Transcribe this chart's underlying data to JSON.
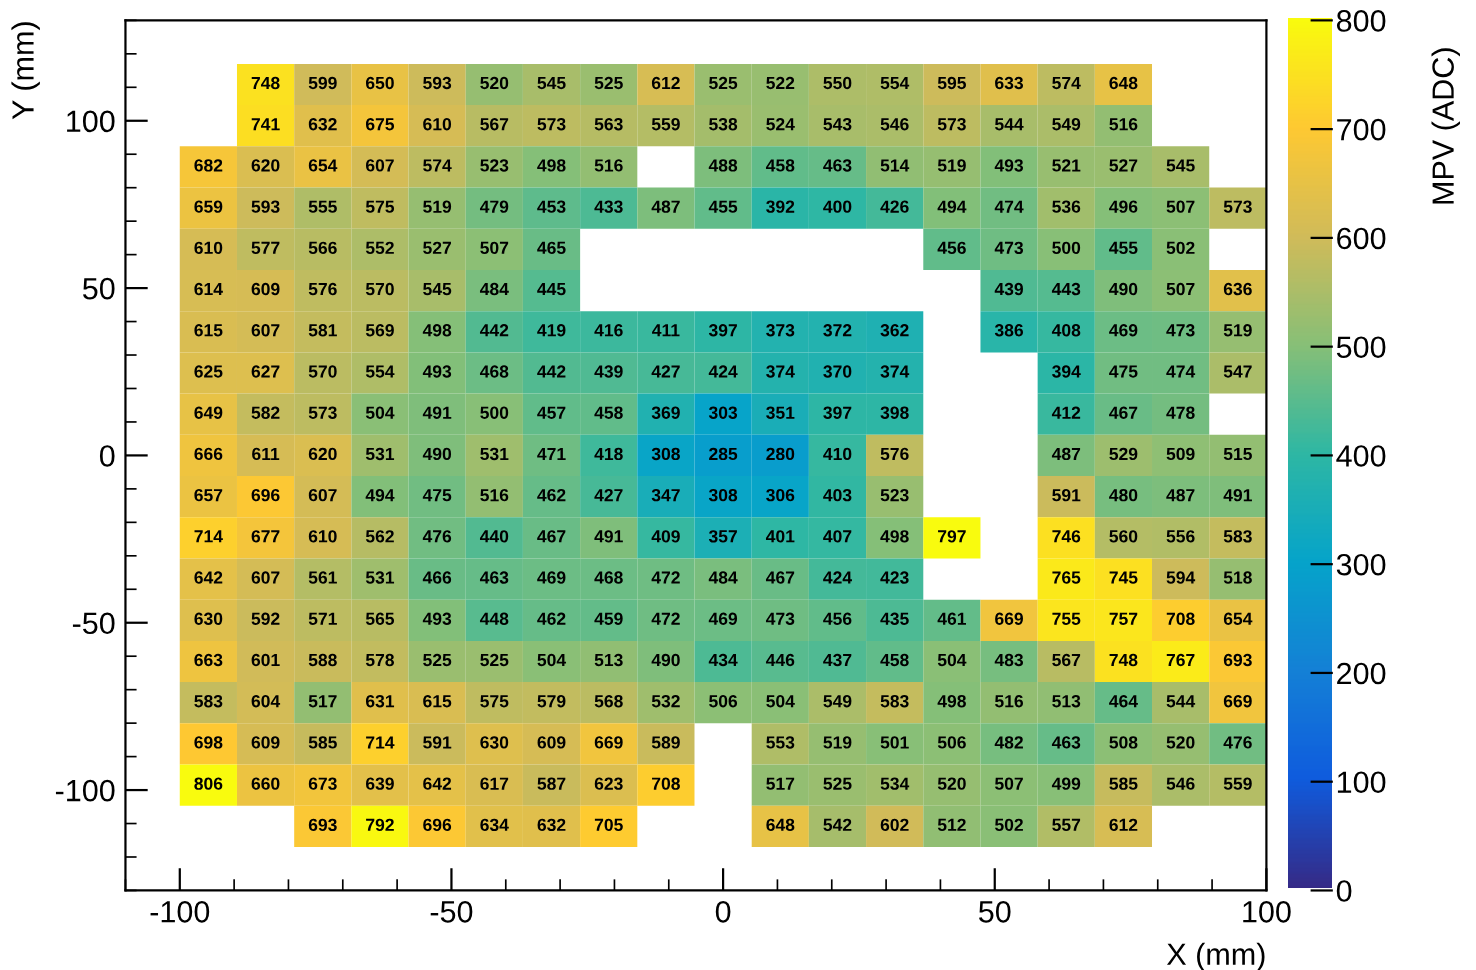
{
  "chart_data": {
    "type": "heatmap",
    "xlabel": "X (mm)",
    "ylabel": "Y (mm)",
    "clabel": "MPV (ADC)",
    "x": [
      -94.74,
      -84.21,
      -73.68,
      -63.16,
      -52.63,
      -42.11,
      -31.58,
      -21.05,
      -10.53,
      0,
      10.53,
      21.05,
      31.58,
      42.11,
      52.63,
      63.16,
      73.68,
      84.21,
      94.74
    ],
    "y": [
      110.84,
      98.53,
      86.21,
      73.89,
      61.58,
      49.26,
      36.95,
      24.63,
      12.32,
      0,
      -12.32,
      -24.63,
      -36.95,
      -49.26,
      -61.58,
      -73.89,
      -86.21,
      -98.53,
      -110.84
    ],
    "cells": [
      [
        null,
        748,
        599,
        650,
        593,
        520,
        545,
        525,
        612,
        525,
        522,
        550,
        554,
        595,
        633,
        574,
        648,
        null,
        null
      ],
      [
        null,
        741,
        632,
        675,
        610,
        567,
        573,
        563,
        559,
        538,
        524,
        543,
        546,
        573,
        544,
        549,
        516,
        null,
        null
      ],
      [
        682,
        620,
        654,
        607,
        574,
        523,
        498,
        516,
        null,
        488,
        458,
        463,
        514,
        519,
        493,
        521,
        527,
        545,
        null
      ],
      [
        659,
        593,
        555,
        575,
        519,
        479,
        453,
        433,
        487,
        455,
        392,
        400,
        426,
        494,
        474,
        536,
        496,
        507,
        573
      ],
      [
        610,
        577,
        566,
        552,
        527,
        507,
        465,
        null,
        null,
        null,
        null,
        null,
        null,
        456,
        473,
        500,
        455,
        502,
        null
      ],
      [
        614,
        609,
        576,
        570,
        545,
        484,
        445,
        null,
        null,
        null,
        null,
        null,
        null,
        null,
        439,
        443,
        490,
        507,
        636
      ],
      [
        615,
        607,
        581,
        569,
        498,
        442,
        419,
        416,
        411,
        397,
        373,
        372,
        362,
        null,
        386,
        408,
        469,
        473,
        519
      ],
      [
        625,
        627,
        570,
        554,
        493,
        468,
        442,
        439,
        427,
        424,
        374,
        370,
        374,
        null,
        null,
        394,
        475,
        474,
        547
      ],
      [
        649,
        582,
        573,
        504,
        491,
        500,
        457,
        458,
        369,
        303,
        351,
        397,
        398,
        null,
        null,
        412,
        467,
        478,
        null
      ],
      [
        666,
        611,
        620,
        531,
        490,
        531,
        471,
        418,
        308,
        285,
        280,
        410,
        576,
        null,
        null,
        487,
        529,
        509,
        515
      ],
      [
        657,
        696,
        607,
        494,
        475,
        516,
        462,
        427,
        347,
        308,
        306,
        403,
        523,
        null,
        null,
        591,
        480,
        487,
        491
      ],
      [
        714,
        677,
        610,
        562,
        476,
        440,
        467,
        491,
        409,
        357,
        401,
        407,
        498,
        797,
        null,
        746,
        560,
        556,
        583
      ],
      [
        642,
        607,
        561,
        531,
        466,
        463,
        469,
        468,
        472,
        484,
        467,
        424,
        423,
        null,
        null,
        765,
        745,
        594,
        518
      ],
      [
        630,
        592,
        571,
        565,
        493,
        448,
        462,
        459,
        472,
        469,
        473,
        456,
        435,
        461,
        669,
        755,
        757,
        708,
        654
      ],
      [
        663,
        601,
        588,
        578,
        525,
        525,
        504,
        513,
        490,
        434,
        446,
        437,
        458,
        504,
        483,
        567,
        748,
        767,
        693
      ],
      [
        583,
        604,
        517,
        631,
        615,
        575,
        579,
        568,
        532,
        506,
        504,
        549,
        583,
        498,
        516,
        513,
        464,
        544,
        669
      ],
      [
        698,
        609,
        585,
        714,
        591,
        630,
        609,
        669,
        589,
        null,
        553,
        519,
        501,
        506,
        482,
        463,
        508,
        520,
        476
      ],
      [
        806,
        660,
        673,
        639,
        642,
        617,
        587,
        623,
        708,
        null,
        517,
        525,
        534,
        520,
        507,
        499,
        585,
        546,
        559
      ],
      [
        null,
        null,
        693,
        792,
        696,
        634,
        632,
        705,
        null,
        null,
        648,
        542,
        602,
        512,
        502,
        557,
        612,
        null,
        null
      ]
    ],
    "data_labels": true,
    "xlim": [
      -110,
      100
    ],
    "ylim": [
      -130,
      130
    ],
    "xticks": [
      -100,
      -50,
      0,
      50,
      100
    ],
    "yticks": [
      -100,
      -50,
      0,
      50,
      100
    ],
    "clim": [
      0,
      800
    ],
    "cticks": [
      0,
      100,
      200,
      300,
      400,
      500,
      600,
      700,
      800
    ]
  }
}
